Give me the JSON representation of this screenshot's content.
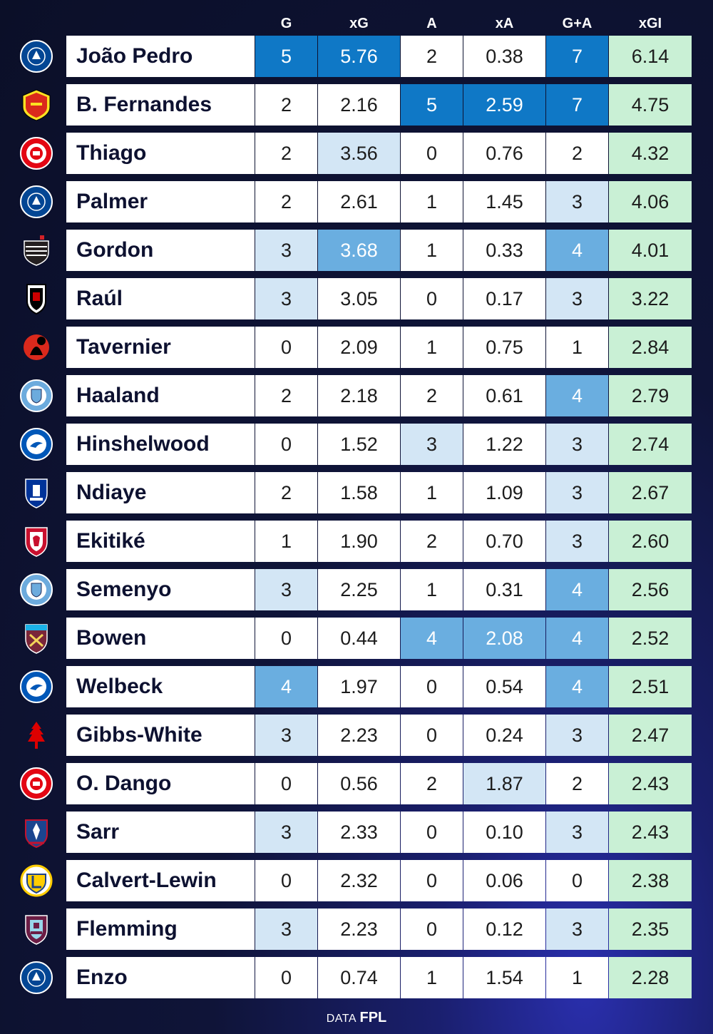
{
  "chart_data": {
    "type": "table",
    "columns": [
      "G",
      "xG",
      "A",
      "xA",
      "G+A",
      "xGI"
    ],
    "rows": [
      {
        "player": "João Pedro",
        "crest": "chelsea-crest-icon",
        "G": "5",
        "xG": "5.76",
        "A": "2",
        "xA": "0.38",
        "GA": "7",
        "xGI": "6.14"
      },
      {
        "player": "B. Fernandes",
        "crest": "man-united-crest-icon",
        "G": "2",
        "xG": "2.16",
        "A": "5",
        "xA": "2.59",
        "GA": "7",
        "xGI": "4.75"
      },
      {
        "player": "Thiago",
        "crest": "brentford-crest-icon",
        "G": "2",
        "xG": "3.56",
        "A": "0",
        "xA": "0.76",
        "GA": "2",
        "xGI": "4.32"
      },
      {
        "player": "Palmer",
        "crest": "chelsea-crest-icon",
        "G": "2",
        "xG": "2.61",
        "A": "1",
        "xA": "1.45",
        "GA": "3",
        "xGI": "4.06"
      },
      {
        "player": "Gordon",
        "crest": "newcastle-crest-icon",
        "G": "3",
        "xG": "3.68",
        "A": "1",
        "xA": "0.33",
        "GA": "4",
        "xGI": "4.01"
      },
      {
        "player": "Raúl",
        "crest": "fulham-crest-icon",
        "G": "3",
        "xG": "3.05",
        "A": "0",
        "xA": "0.17",
        "GA": "3",
        "xGI": "3.22"
      },
      {
        "player": "Tavernier",
        "crest": "bournemouth-crest-icon",
        "G": "0",
        "xG": "2.09",
        "A": "1",
        "xA": "0.75",
        "GA": "1",
        "xGI": "2.84"
      },
      {
        "player": "Haaland",
        "crest": "man-city-crest-icon",
        "G": "2",
        "xG": "2.18",
        "A": "2",
        "xA": "0.61",
        "GA": "4",
        "xGI": "2.79"
      },
      {
        "player": "Hinshelwood",
        "crest": "brighton-crest-icon",
        "G": "0",
        "xG": "1.52",
        "A": "3",
        "xA": "1.22",
        "GA": "3",
        "xGI": "2.74"
      },
      {
        "player": "Ndiaye",
        "crest": "everton-crest-icon",
        "G": "2",
        "xG": "1.58",
        "A": "1",
        "xA": "1.09",
        "GA": "3",
        "xGI": "2.67"
      },
      {
        "player": "Ekitiké",
        "crest": "liverpool-crest-icon",
        "G": "1",
        "xG": "1.90",
        "A": "2",
        "xA": "0.70",
        "GA": "3",
        "xGI": "2.60"
      },
      {
        "player": "Semenyo",
        "crest": "man-city-crest-icon",
        "G": "3",
        "xG": "2.25",
        "A": "1",
        "xA": "0.31",
        "GA": "4",
        "xGI": "2.56"
      },
      {
        "player": "Bowen",
        "crest": "west-ham-crest-icon",
        "G": "0",
        "xG": "0.44",
        "A": "4",
        "xA": "2.08",
        "GA": "4",
        "xGI": "2.52"
      },
      {
        "player": "Welbeck",
        "crest": "brighton-crest-icon",
        "G": "4",
        "xG": "1.97",
        "A": "0",
        "xA": "0.54",
        "GA": "4",
        "xGI": "2.51"
      },
      {
        "player": "Gibbs-White",
        "crest": "nottingham-forest-crest-icon",
        "G": "3",
        "xG": "2.23",
        "A": "0",
        "xA": "0.24",
        "GA": "3",
        "xGI": "2.47"
      },
      {
        "player": "O. Dango",
        "crest": "brentford-crest-icon",
        "G": "0",
        "xG": "0.56",
        "A": "2",
        "xA": "1.87",
        "GA": "2",
        "xGI": "2.43"
      },
      {
        "player": "Sarr",
        "crest": "crystal-palace-crest-icon",
        "G": "3",
        "xG": "2.33",
        "A": "0",
        "xA": "0.10",
        "GA": "3",
        "xGI": "2.43"
      },
      {
        "player": "Calvert-Lewin",
        "crest": "leeds-crest-icon",
        "G": "0",
        "xG": "2.32",
        "A": "0",
        "xA": "0.06",
        "GA": "0",
        "xGI": "2.38"
      },
      {
        "player": "Flemming",
        "crest": "burnley-crest-icon",
        "G": "3",
        "xG": "2.23",
        "A": "0",
        "xA": "0.12",
        "GA": "3",
        "xGI": "2.35"
      },
      {
        "player": "Enzo",
        "crest": "chelsea-crest-icon",
        "G": "0",
        "xG": "0.74",
        "A": "1",
        "xA": "1.54",
        "GA": "1",
        "xGI": "2.28"
      }
    ],
    "heat": {
      "G": [
        3,
        0,
        0,
        0,
        1,
        1,
        0,
        0,
        0,
        0,
        0,
        1,
        0,
        2,
        1,
        0,
        1,
        0,
        1,
        0
      ],
      "xG": [
        3,
        0,
        1,
        0,
        2,
        0,
        0,
        0,
        0,
        0,
        0,
        0,
        0,
        0,
        0,
        0,
        0,
        0,
        0,
        0
      ],
      "A": [
        0,
        3,
        0,
        0,
        0,
        0,
        0,
        0,
        1,
        0,
        0,
        0,
        2,
        0,
        0,
        0,
        0,
        0,
        0,
        0
      ],
      "xA": [
        0,
        3,
        0,
        0,
        0,
        0,
        0,
        0,
        0,
        0,
        0,
        0,
        2,
        0,
        0,
        1,
        0,
        0,
        0,
        0
      ],
      "GA": [
        3,
        3,
        0,
        1,
        2,
        1,
        0,
        2,
        1,
        1,
        1,
        2,
        2,
        2,
        1,
        0,
        1,
        0,
        1,
        0
      ]
    },
    "heat_colors": {
      "0": "#ffffff",
      "1": "#d3e6f5",
      "2": "#6aaee0",
      "3": "#0f78c6",
      "xgi": "#c9f0d5"
    }
  },
  "footer": {
    "prefix": "DATA",
    "source": "FPL"
  }
}
